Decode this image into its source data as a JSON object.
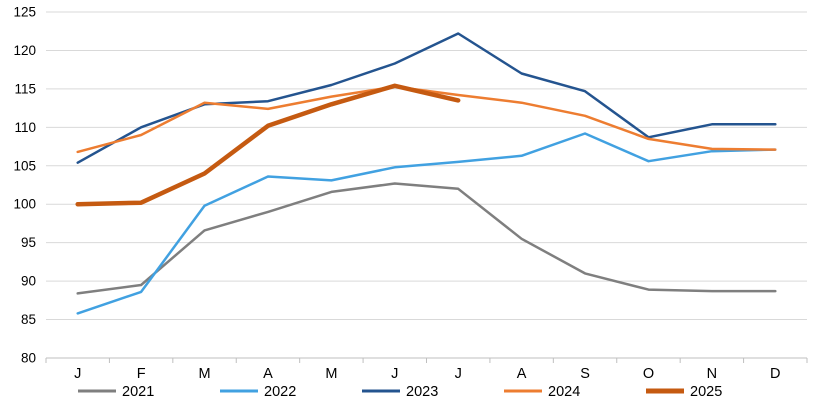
{
  "chart_data": {
    "type": "line",
    "categories": [
      "J",
      "F",
      "M",
      "A",
      "M",
      "J",
      "J",
      "A",
      "S",
      "O",
      "N",
      "D"
    ],
    "ylim": [
      80,
      125
    ],
    "ytick_step": 5,
    "grid": true,
    "legend_position": "bottom",
    "series": [
      {
        "name": "2021",
        "color": "#7F7F7F",
        "width": 2.5,
        "values": [
          88.4,
          89.5,
          96.6,
          99.0,
          101.6,
          102.7,
          102.0,
          95.5,
          91.0,
          88.9,
          88.7,
          88.7
        ]
      },
      {
        "name": "2022",
        "color": "#41A1E1",
        "width": 2.5,
        "values": [
          85.8,
          88.6,
          99.8,
          103.6,
          103.1,
          104.8,
          105.5,
          106.3,
          109.2,
          105.6,
          106.9,
          107.1
        ]
      },
      {
        "name": "2023",
        "color": "#24548F",
        "width": 2.5,
        "values": [
          105.4,
          110.0,
          113.0,
          113.4,
          115.5,
          118.3,
          122.2,
          117.0,
          114.7,
          108.7,
          110.4,
          110.4
        ]
      },
      {
        "name": "2024",
        "color": "#ED7D31",
        "width": 2.5,
        "values": [
          106.8,
          109.0,
          113.2,
          112.4,
          114.0,
          115.3,
          114.2,
          113.2,
          111.5,
          108.5,
          107.2,
          107.1
        ]
      },
      {
        "name": "2025",
        "color": "#C55A11",
        "width": 4.5,
        "values": [
          100.0,
          100.2,
          104.0,
          110.2,
          113.0,
          115.4,
          113.5
        ]
      }
    ]
  },
  "style": {
    "grid_color": "#D9D9D9",
    "axis_color": "#BFBFBF",
    "text_color": "#000000"
  }
}
